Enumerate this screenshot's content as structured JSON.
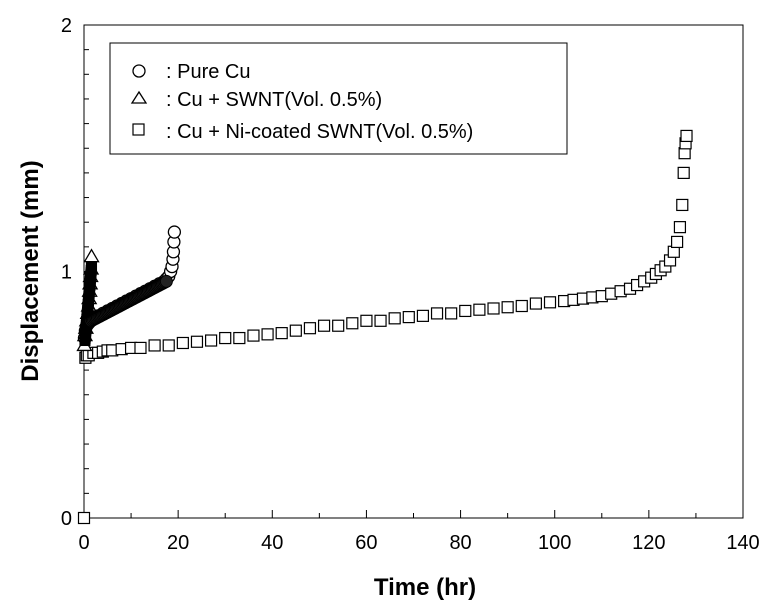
{
  "chart_data": {
    "type": "scatter",
    "title": "",
    "xlabel": "Time (hr)",
    "ylabel": "Displacement (mm)",
    "xlim": [
      0,
      140
    ],
    "ylim": [
      0,
      2
    ],
    "xticks": [
      "0",
      "20",
      "40",
      "60",
      "80",
      "100",
      "120",
      "140"
    ],
    "yticks": [
      "0",
      "1",
      "2"
    ],
    "grid": false,
    "legend_position": "top-left",
    "series": [
      {
        "name": ": Pure Cu",
        "marker": "circle",
        "x": [
          0.1,
          0.3,
          0.6,
          1.0,
          1.5,
          2.0,
          3.0,
          4.0,
          5.0,
          6.0,
          7.0,
          8.0,
          9.0,
          10.0,
          11.0,
          12.0,
          13.0,
          14.0,
          15.0,
          16.0,
          17.0,
          17.5,
          18.0,
          18.4,
          18.7,
          18.9,
          19.0,
          19.1,
          19.2
        ],
        "y": [
          0.73,
          0.76,
          0.78,
          0.79,
          0.8,
          0.81,
          0.82,
          0.83,
          0.84,
          0.85,
          0.86,
          0.87,
          0.88,
          0.89,
          0.9,
          0.91,
          0.92,
          0.93,
          0.94,
          0.95,
          0.96,
          0.97,
          0.98,
          1.0,
          1.02,
          1.05,
          1.08,
          1.12,
          1.16
        ]
      },
      {
        "name": ": Cu + SWNT(Vol. 0.5%)",
        "marker": "triangle",
        "x": [
          0.1,
          0.2,
          0.4,
          0.6,
          0.8,
          1.0,
          1.1,
          1.2,
          1.3,
          1.4,
          1.5,
          1.6
        ],
        "y": [
          0.7,
          0.74,
          0.77,
          0.8,
          0.83,
          0.86,
          0.89,
          0.92,
          0.95,
          0.98,
          1.01,
          1.06
        ]
      },
      {
        "name": ": Cu + Ni-coated SWNT(Vol. 0.5%)",
        "marker": "square",
        "x": [
          0.0,
          0.3,
          0.6,
          1.0,
          2,
          3,
          4,
          5,
          6,
          8,
          10,
          12,
          15,
          18,
          21,
          24,
          27,
          30,
          33,
          36,
          39,
          42,
          45,
          48,
          51,
          54,
          57,
          60,
          63,
          66,
          69,
          72,
          75,
          78,
          81,
          84,
          87,
          90,
          93,
          96,
          99,
          102,
          104,
          106,
          108,
          110,
          112,
          114,
          116,
          117.5,
          119,
          120.5,
          121.5,
          122.5,
          123.5,
          124.5,
          125.3,
          126.0,
          126.6,
          127.1,
          127.4,
          127.6,
          127.8,
          128.0
        ],
        "y": [
          0.0,
          0.65,
          0.66,
          0.66,
          0.67,
          0.67,
          0.675,
          0.68,
          0.68,
          0.685,
          0.69,
          0.69,
          0.7,
          0.7,
          0.71,
          0.715,
          0.72,
          0.73,
          0.73,
          0.74,
          0.745,
          0.75,
          0.76,
          0.77,
          0.78,
          0.78,
          0.79,
          0.8,
          0.8,
          0.81,
          0.815,
          0.82,
          0.83,
          0.83,
          0.84,
          0.845,
          0.85,
          0.855,
          0.86,
          0.87,
          0.875,
          0.88,
          0.885,
          0.89,
          0.895,
          0.9,
          0.91,
          0.92,
          0.93,
          0.945,
          0.96,
          0.975,
          0.99,
          1.005,
          1.02,
          1.045,
          1.08,
          1.12,
          1.18,
          1.27,
          1.4,
          1.48,
          1.52,
          1.55
        ]
      }
    ]
  }
}
